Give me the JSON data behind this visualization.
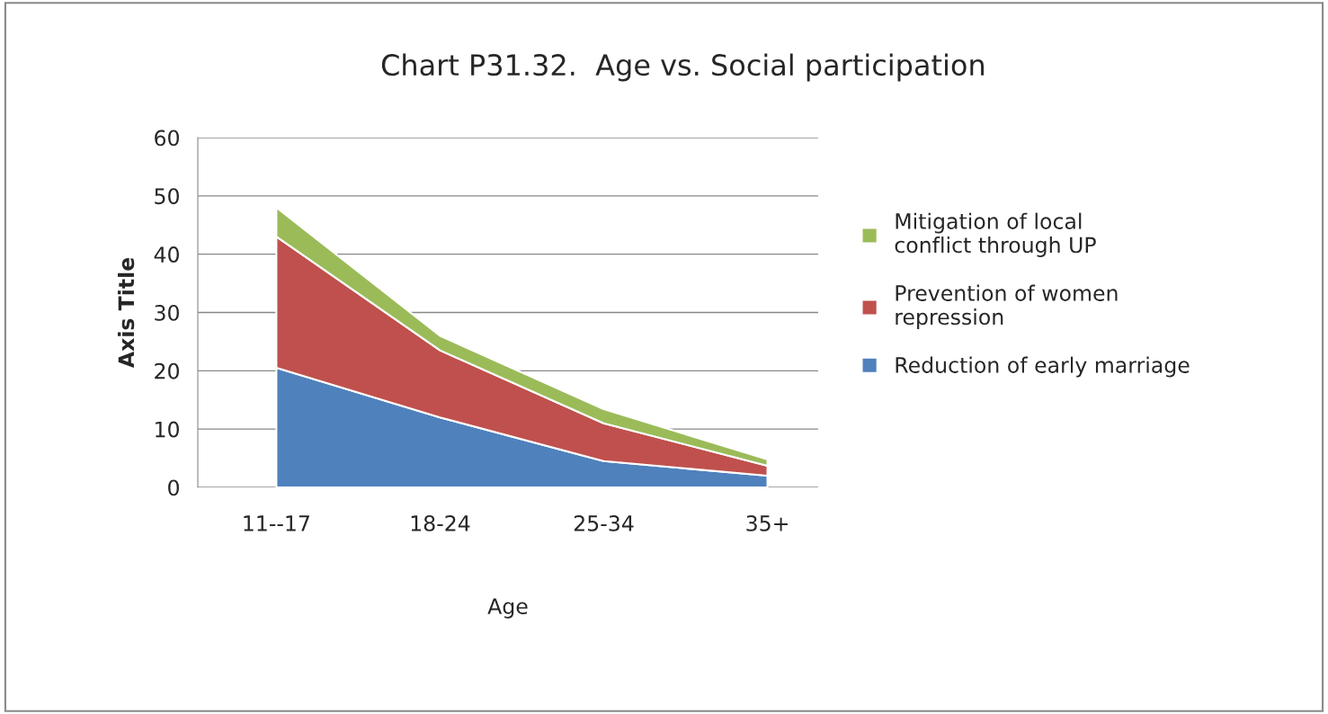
{
  "chart_data": {
    "type": "area",
    "stacked": true,
    "title": "Chart P31.32.  Age vs. Social participation",
    "xlabel": "Age",
    "ylabel": "Axis Title",
    "categories": [
      "11--17",
      "18-24",
      "25-34",
      "35+"
    ],
    "series": [
      {
        "name": "Reduction of early marriage",
        "color": "#4f81bd",
        "values": [
          20.5,
          12,
          4.5,
          2
        ]
      },
      {
        "name": "Prevention of women repression",
        "color": "#c0504d",
        "values": [
          22.5,
          11.5,
          6.5,
          1.7
        ]
      },
      {
        "name": "Mitigation of local conflict through UP",
        "color": "#9bbb59",
        "values": [
          5,
          2.5,
          2.4,
          1.1
        ]
      }
    ],
    "ylim": [
      0,
      60
    ],
    "yticks": [
      0,
      10,
      20,
      30,
      40,
      50,
      60
    ],
    "grid": "y",
    "legend": "right"
  }
}
